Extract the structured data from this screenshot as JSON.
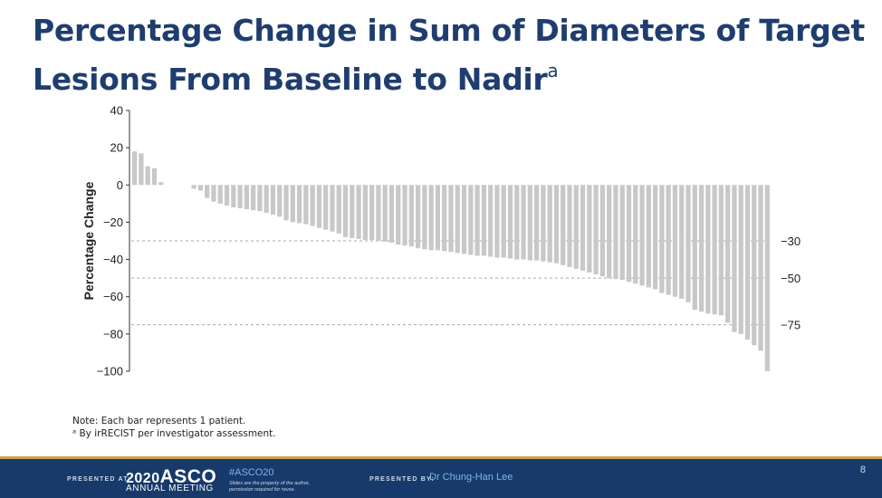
{
  "slide": {
    "title_main": "Percentage Change in Sum of Diameters of Target Lesions From Baseline to Nadir",
    "title_sup": "a",
    "note_line": "Note: Each bar represents 1 patient.",
    "footnote": "ᵃ By irRECIST per investigator assessment.",
    "page_number": "8"
  },
  "footer": {
    "presented_at": "PRESENTED AT:",
    "asco_year": "2020",
    "asco_name": "ASCO",
    "asco_sub": "ANNUAL MEETING",
    "hashtag": "#ASCO20",
    "disclaimer_1": "Slides are the property of the author,",
    "disclaimer_2": "permission required for reuse.",
    "presented_by": "PRESENTED BY:",
    "presenter": "Dr Chung-Han Lee"
  },
  "colors": {
    "bar": "#c8c8c8",
    "title": "#1f3d6e",
    "footer_bg": "#173a6b"
  },
  "chart_data": {
    "type": "bar",
    "title": "",
    "xlabel": "",
    "ylabel": "Percentage Change",
    "ylim": [
      -100,
      40
    ],
    "yticks": [
      40,
      20,
      0,
      -20,
      -40,
      -60,
      -80,
      -100
    ],
    "ytick_labels": [
      "40",
      "20",
      "0",
      "−20",
      "−40",
      "−60",
      "−80",
      "−100"
    ],
    "reference_lines": [
      {
        "value": -30,
        "label": "−30"
      },
      {
        "value": -50,
        "label": "−50"
      },
      {
        "value": -75,
        "label": "−75"
      }
    ],
    "grid": false,
    "values": [
      18,
      17,
      10,
      9,
      1.5,
      0,
      0,
      0,
      0,
      -2,
      -3,
      -7,
      -9,
      -10,
      -11,
      -12,
      -12.5,
      -13,
      -13.5,
      -14,
      -15,
      -16,
      -17,
      -19,
      -20,
      -20.5,
      -21,
      -22,
      -23,
      -24,
      -25,
      -26,
      -28,
      -28.5,
      -29,
      -29.5,
      -29.5,
      -30,
      -30.5,
      -31,
      -32,
      -32.5,
      -33,
      -34,
      -34.5,
      -35,
      -35,
      -35.5,
      -36,
      -36.5,
      -37,
      -37.5,
      -38,
      -38,
      -38.5,
      -39,
      -39,
      -39.5,
      -40,
      -40,
      -40.5,
      -40.5,
      -41,
      -41.5,
      -42,
      -43,
      -44,
      -45,
      -46,
      -47,
      -48,
      -49,
      -50,
      -50.5,
      -51,
      -52,
      -53,
      -54,
      -55,
      -56,
      -58,
      -59,
      -60,
      -61,
      -63,
      -67,
      -68,
      -69,
      -69.5,
      -70,
      -74,
      -79,
      -80,
      -83,
      -86,
      -89,
      -100
    ]
  }
}
